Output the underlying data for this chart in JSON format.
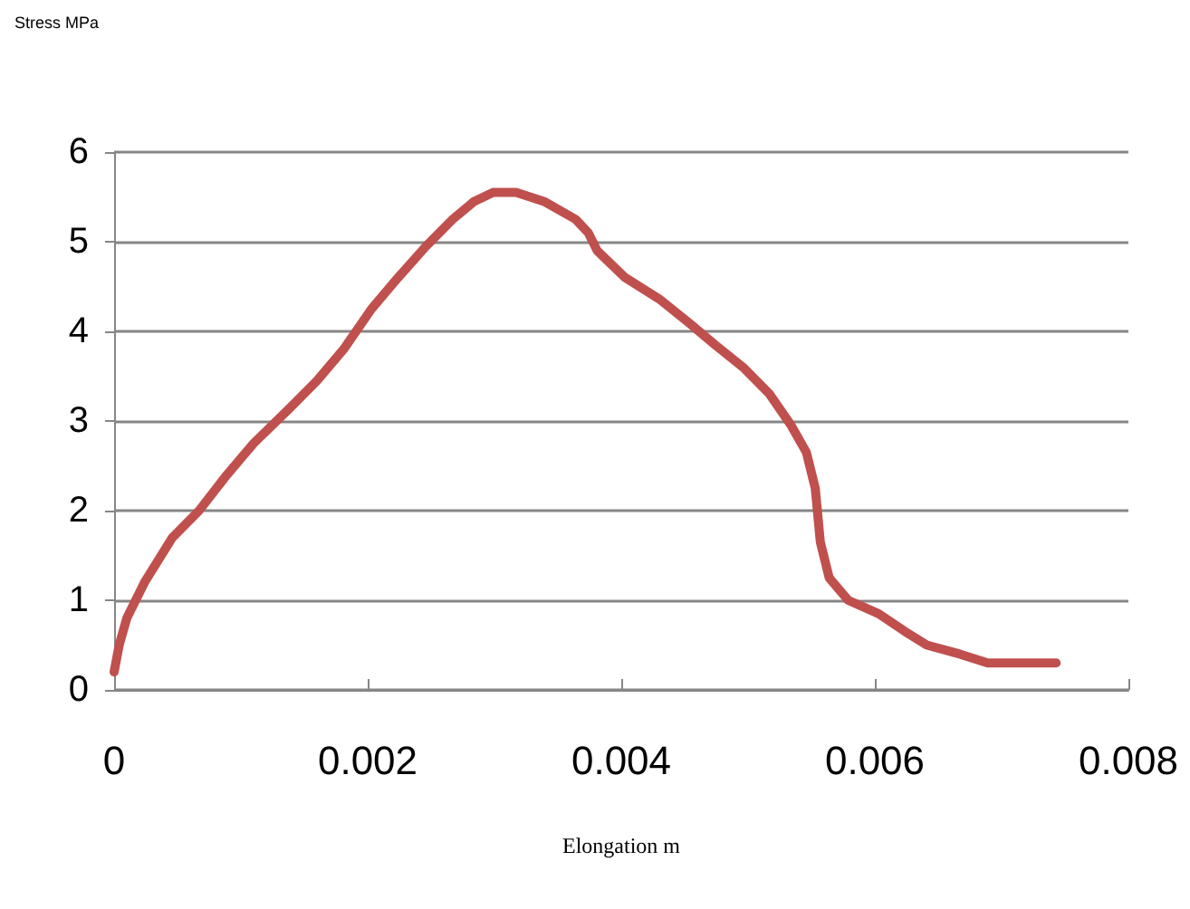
{
  "chart_data": {
    "type": "line",
    "xlabel": "Elongation m",
    "annotations": [
      "Stress MPa"
    ],
    "series": [
      {
        "color": "#c0504d",
        "x": [
          0,
          4e-05,
          0.0001,
          0.00024,
          0.00046,
          0.00067,
          0.00089,
          0.0011,
          0.00139,
          0.0016,
          0.00181,
          0.00203,
          0.00224,
          0.00246,
          0.00267,
          0.00284,
          0.00299,
          0.00317,
          0.00339,
          0.00364,
          0.00374,
          0.00381,
          0.00403,
          0.00431,
          0.00453,
          0.00474,
          0.00496,
          0.00517,
          0.00534,
          0.00546,
          0.00553,
          0.00557,
          0.00564,
          0.00579,
          0.00603,
          0.00624,
          0.00641,
          0.00667,
          0.00689,
          0.00743
        ],
        "values": [
          0.2,
          0.5,
          0.8,
          1.2,
          1.7,
          2.0,
          2.4,
          2.75,
          3.15,
          3.45,
          3.8,
          4.25,
          4.6,
          4.95,
          5.25,
          5.45,
          5.55,
          5.55,
          5.45,
          5.25,
          5.1,
          4.9,
          4.6,
          4.35,
          4.1,
          3.85,
          3.6,
          3.3,
          2.95,
          2.65,
          2.25,
          1.65,
          1.25,
          1.0,
          0.85,
          0.65,
          0.5,
          0.4,
          0.3,
          0.3
        ]
      }
    ],
    "xlim": [
      0,
      0.008
    ],
    "xticks": [
      0,
      0.002,
      0.004,
      0.006,
      0.008
    ],
    "ylim": [
      0,
      6
    ],
    "yticks": [
      0,
      1,
      2,
      3,
      4,
      5,
      6
    ],
    "grid": "y",
    "marker": "none",
    "line_style": "solid"
  }
}
